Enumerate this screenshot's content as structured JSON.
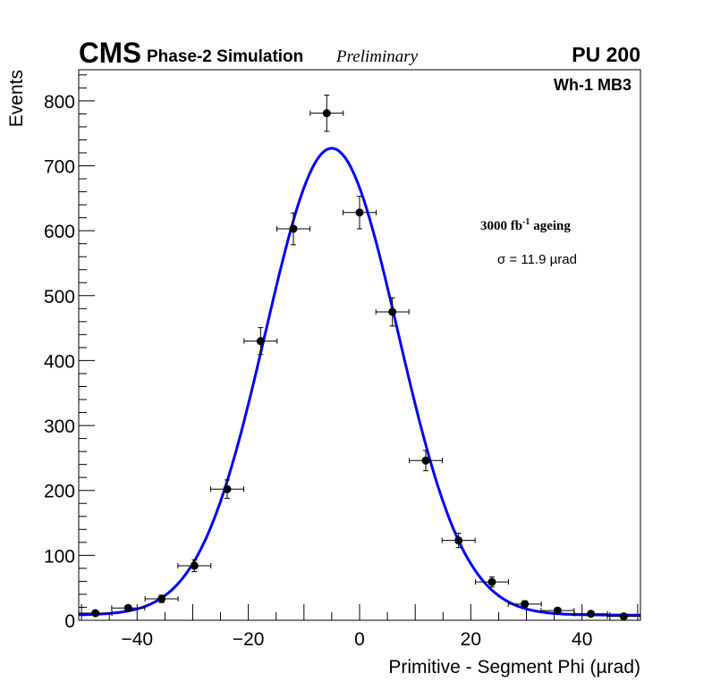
{
  "chart_data": {
    "type": "scatter",
    "title": {
      "experiment": "CMS",
      "subtitle": "Phase-2 Simulation",
      "status": "Preliminary",
      "pileup": "PU 200"
    },
    "region_label": "Wh-1 MB3",
    "annotations": {
      "ageing": "3000 fb",
      "ageing_exp": "-1",
      "ageing_suffix": " ageing",
      "sigma": "σ = 11.9 µrad"
    },
    "xlabel": "Primitive - Segment Phi (µrad)",
    "ylabel": "Events",
    "xlim": [
      -50.5,
      50.5
    ],
    "ylim": [
      0,
      848
    ],
    "xticks": [
      -40,
      -20,
      0,
      20,
      40
    ],
    "xtick_labels": [
      "−40",
      "−20",
      "0",
      "20",
      "40"
    ],
    "yticks": [
      0,
      100,
      200,
      300,
      400,
      500,
      600,
      700,
      800
    ],
    "ytick_labels": [
      "0",
      "100",
      "200",
      "300",
      "400",
      "500",
      "600",
      "700",
      "800"
    ],
    "bin_width": 5.94,
    "x": [
      -47.5,
      -41.6,
      -35.6,
      -29.7,
      -23.8,
      -17.8,
      -11.9,
      -5.9,
      0,
      5.9,
      11.9,
      17.8,
      23.8,
      29.7,
      35.6,
      41.6,
      47.5
    ],
    "values": [
      11,
      19,
      33,
      84,
      202,
      430,
      603,
      781,
      628,
      475,
      246,
      123,
      59,
      25,
      15,
      10,
      6
    ],
    "fit": {
      "type": "gaussian",
      "mean": -5,
      "sigma": 11.9,
      "amplitude": 719,
      "constant": 8,
      "color": "#0000ff"
    },
    "marker_color": "#000000",
    "grid": false
  }
}
